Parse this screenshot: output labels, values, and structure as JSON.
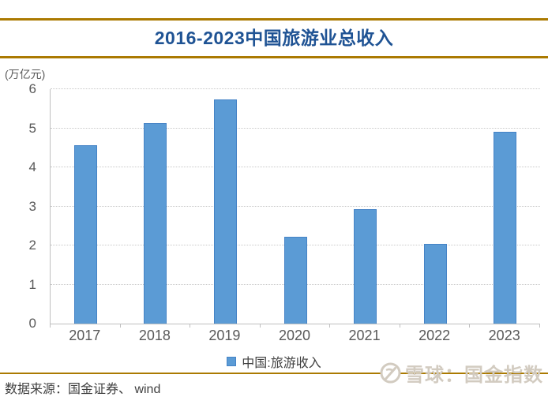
{
  "title": "2016-2023中国旅游业总收入",
  "unit_label": "(万亿元)",
  "legend": {
    "label": "中国:旅游收入"
  },
  "footer": {
    "source": "数据来源：国金证券、 wind"
  },
  "watermark": {
    "text": "雪球：国金指数",
    "logo": "xueqiu-snowball-icon"
  },
  "colors": {
    "accent_rule": "#AB7A01",
    "title": "#1F5394",
    "bar_fill": "#5B9BD5",
    "bar_border": "#4583C6",
    "axis": "#BFBFBF",
    "gridline": "#C9C9C9",
    "tick_text": "#595959",
    "watermark": "#D2CBC0"
  },
  "chart_data": {
    "type": "bar",
    "title": "2016-2023中国旅游业总收入",
    "categories": [
      "2017",
      "2018",
      "2019",
      "2020",
      "2021",
      "2022",
      "2023"
    ],
    "values": [
      4.57,
      5.13,
      5.73,
      2.23,
      2.92,
      2.04,
      4.91
    ],
    "series_name": "中国:旅游收入",
    "xlabel": "",
    "ylabel": "(万亿元)",
    "ylim": [
      0,
      6
    ],
    "yticks": [
      0,
      1,
      2,
      3,
      4,
      5,
      6
    ],
    "grid": "horizontal-dotted",
    "legend_position": "bottom",
    "bar_color": "#5B9BD5"
  }
}
